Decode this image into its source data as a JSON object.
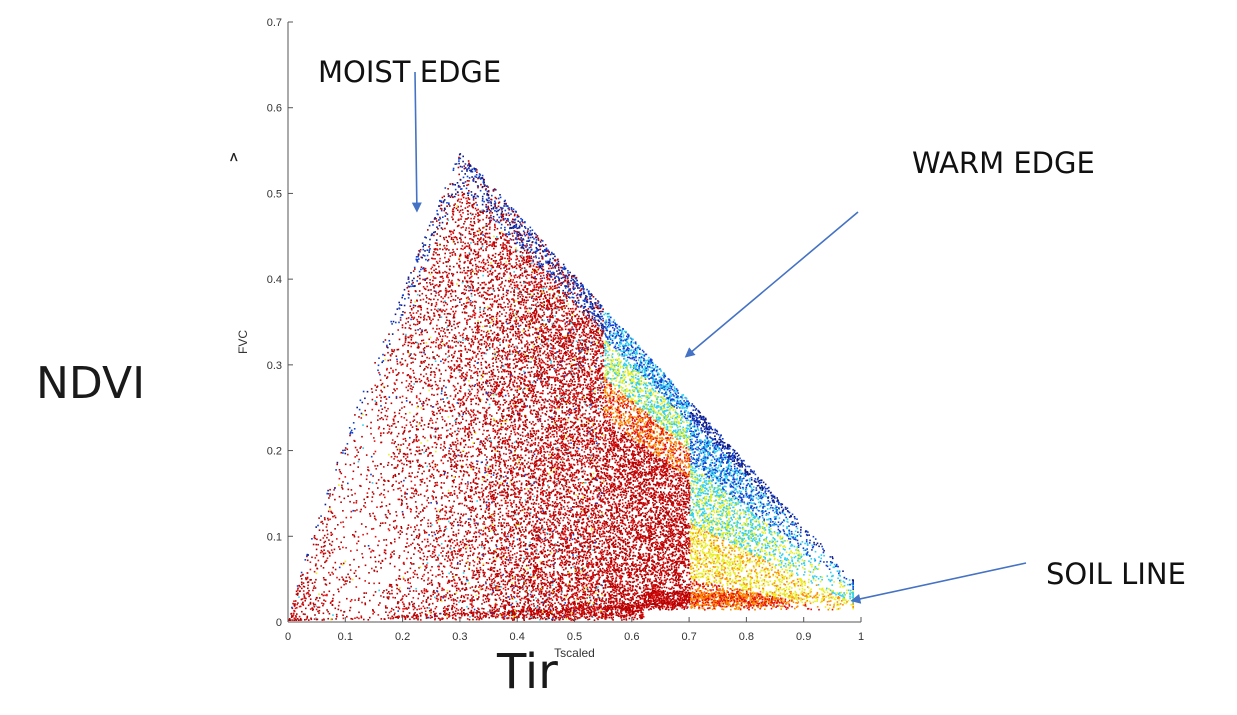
{
  "chart_data": {
    "type": "scatter",
    "title": "",
    "xlabel": "Tscaled",
    "ylabel": "FVC",
    "xlim": [
      0,
      1
    ],
    "ylim": [
      0,
      0.7
    ],
    "x_ticks": [
      "0",
      "0.1",
      "0.2",
      "0.3",
      "0.4",
      "0.5",
      "0.6",
      "0.7",
      "0.8",
      "0.9",
      "1"
    ],
    "y_ticks": [
      "0",
      "0.1",
      "0.2",
      "0.3",
      "0.4",
      "0.5",
      "0.6",
      "0.7"
    ],
    "grid": false,
    "y_axis_glyph": ">",
    "outer_labels": {
      "y": "NDVI",
      "x": "Tir"
    },
    "annotations": [
      {
        "text": "MOIST EDGE",
        "arrow_to": [
          0.225,
          0.48
        ]
      },
      {
        "text": "WARM EDGE",
        "arrow_to": [
          0.695,
          0.31
        ]
      },
      {
        "text": "SOIL LINE",
        "arrow_to": [
          0.985,
          0.025
        ]
      }
    ],
    "triangle_envelope": {
      "points": [
        [
          0.0,
          0.0
        ],
        [
          0.3,
          0.55
        ],
        [
          1.0,
          0.04
        ]
      ],
      "description": "Dense triangular scatter of FVC vs Tscaled pixels"
    },
    "colors": {
      "dense": "#b40000",
      "red": "#e01010",
      "orange": "#ff8c00",
      "yellow": "#e8f020",
      "cyan": "#30d0f0",
      "blue": "#1040d0",
      "navy": "#101a80",
      "arrow": "#4472c4"
    }
  }
}
